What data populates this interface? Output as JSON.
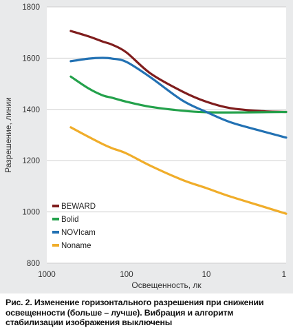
{
  "chart_data": {
    "type": "line",
    "xlabel": "Освещенность, лк",
    "ylabel": "Разрешение, линии",
    "x_scale": "log",
    "x_reversed": true,
    "xlim": [
      1000,
      1
    ],
    "ylim": [
      800,
      1800
    ],
    "x_ticks": [
      1000,
      100,
      10,
      1
    ],
    "x_tick_labels": [
      "1000",
      "100",
      "10",
      "1"
    ],
    "y_ticks": [
      800,
      1000,
      1200,
      1400,
      1600,
      1800
    ],
    "y_tick_labels": [
      "800",
      "1000",
      "1200",
      "1400",
      "1600",
      "1800"
    ],
    "grid": "horizontal",
    "legend_position": "lower-left",
    "x": [
      500,
      300,
      200,
      150,
      100,
      50,
      20,
      10,
      5,
      2,
      1
    ],
    "series": [
      {
        "name": "BEWARD",
        "color": "#7f1d1d",
        "values": [
          1706,
          1685,
          1665,
          1652,
          1622,
          1540,
          1470,
          1430,
          1405,
          1393,
          1390
        ]
      },
      {
        "name": "Bolid",
        "color": "#23a14b",
        "values": [
          1528,
          1482,
          1455,
          1445,
          1430,
          1410,
          1395,
          1389,
          1388,
          1389,
          1390
        ]
      },
      {
        "name": "NOVIcam",
        "color": "#2271b3",
        "values": [
          1588,
          1598,
          1601,
          1598,
          1585,
          1525,
          1435,
          1390,
          1350,
          1315,
          1290
        ]
      },
      {
        "name": "Noname",
        "color": "#f0ad2a",
        "values": [
          1330,
          1293,
          1265,
          1248,
          1228,
          1180,
          1125,
          1093,
          1060,
          1022,
          993
        ]
      }
    ]
  },
  "caption": "Рис. 2. Изменение горизонтального разрешения при снижении освещенности (больше – лучше). Вибрация и алгоритм стабилизации изображения выключены"
}
